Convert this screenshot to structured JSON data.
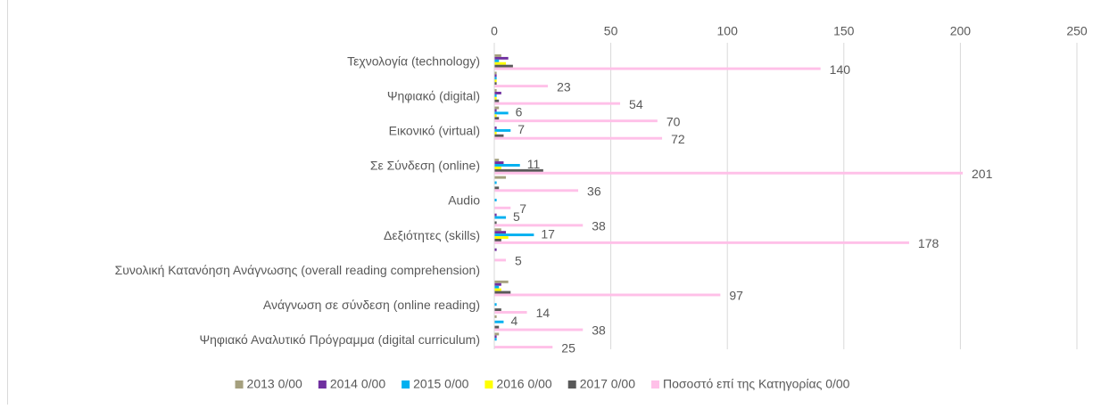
{
  "chart_data": {
    "type": "hbar",
    "categories": [
      "Τεχνολογία (technology)",
      null,
      "Ψηφιακό (digital)",
      null,
      "Εικονικό (virtual)",
      null,
      "Σε Σύνδεση (online)",
      null,
      "Audio",
      null,
      "Δεξιότητες (skills)",
      null,
      "Συνολική Κατανόηση Ανάγνωσης (overall reading comprehension)",
      null,
      "Ανάγνωση σε σύνδεση (online reading)",
      null,
      "Ψηφιακό Αναλυτικό Πρόγραμμα (digital curriculum)"
    ],
    "series": [
      {
        "name": "2013 0/00",
        "color": "#a5a07e",
        "values": [
          3,
          1,
          1,
          2,
          0,
          null,
          2,
          5,
          0,
          0,
          3,
          0,
          null,
          6,
          0,
          1,
          2
        ]
      },
      {
        "name": "2014 0/00",
        "color": "#7030a0",
        "values": [
          6,
          1,
          3,
          1,
          1,
          null,
          4,
          0,
          0,
          1,
          5,
          1,
          null,
          3,
          0,
          0,
          1
        ]
      },
      {
        "name": "2015 0/00",
        "color": "#00b0f0",
        "values": [
          2,
          1,
          1,
          6,
          7,
          null,
          11,
          1,
          1,
          5,
          17,
          0,
          null,
          2,
          1,
          4,
          1
        ],
        "value_labels": [
          null,
          null,
          null,
          "6",
          "7",
          null,
          "11",
          null,
          null,
          "5",
          "17",
          null,
          null,
          null,
          null,
          "4",
          null
        ]
      },
      {
        "name": "2016 0/00",
        "color": "#ffff00",
        "values": [
          5,
          1,
          1,
          1,
          1,
          null,
          3,
          0,
          0,
          0,
          6,
          0,
          null,
          3,
          0,
          0,
          0
        ]
      },
      {
        "name": "2017 0/00",
        "color": "#595959",
        "values": [
          8,
          1,
          2,
          2,
          4,
          null,
          21,
          2,
          0,
          1,
          3,
          0,
          null,
          7,
          3,
          2,
          0
        ]
      },
      {
        "name": "Ποσοστό επί της Κατηγορίας 0/00",
        "color": "#ffc0e8",
        "values": [
          140,
          23,
          54,
          70,
          72,
          null,
          201,
          36,
          7,
          38,
          178,
          5,
          null,
          97,
          14,
          38,
          25
        ],
        "labels": true
      }
    ],
    "xlim": [
      0,
      250
    ],
    "xticks": [
      0,
      50,
      100,
      150,
      200,
      250
    ],
    "grid": true,
    "legend": "bottom"
  }
}
